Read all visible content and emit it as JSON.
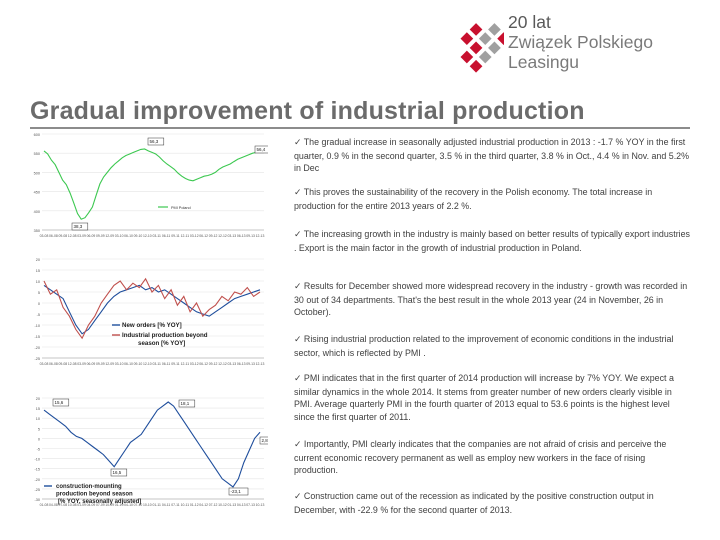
{
  "logo": {
    "line1": "20 lat",
    "line2": "Związek Polskiego",
    "line3": "Leasingu",
    "mark_color": "#c8102e"
  },
  "title": "Gradual improvement of industrial production",
  "bullets": [
    "The gradual increase in seasonally adjusted industrial production in 2013 : -1.7 % YOY in the first quarter, 0.9 % in the second quarter, 3.5 % in the third quarter, 3.8 % in Oct., 4.4 % in Nov. and 5.2% in Dec",
    "This proves the sustainability of the recovery in the Polish economy. The total increase in production for the entire 2013 years of 2.2 %.",
    "The increasing growth in the industry is mainly based on better results of typically export industries . Export is the main factor in the growth of industrial production in Poland.",
    "Results for December showed more widespread recovery in the industry - growth was recorded in 30 out of 34 departments. That's the best result in the whole 2013 year (24 in November, 26 in October).",
    "Rising industrial production related to the improvement of economic conditions in the industrial sector, which is reflected by PMI .",
    "PMI indicates that in the first quarter of 2014 production will increase by 7% YOY. We expect a similar dynamics in the whole 2014. It stems from greater number of new orders clearly visible in PMI. Average quarterly PMI in the fourth quarter of 2013 equal to 53.6 points is the highest level since the first quarter of 2011.",
    "Importantly, PMI clearly indicates that the companies are not afraid of crisis and perceive the current economic recovery permanent as well as employ new workers in the face of rising production.",
    "Construction came out of the recession as indicated by the positive construction output in December, with -22.9 % for the second quarter of 2013."
  ],
  "chart_data": [
    {
      "type": "line",
      "title": "",
      "y_ticks": [
        "600",
        "550",
        "500",
        "450",
        "400",
        "350"
      ],
      "x_ticks": [
        "03-08",
        "06-08",
        "09-08",
        "12-08",
        "03-09",
        "06-09",
        "09-09",
        "12-09",
        "03-10",
        "06-10",
        "09-10",
        "12-10",
        "03-11",
        "06-11",
        "09-11",
        "12-11",
        "03-12",
        "06-12",
        "09-12",
        "12-12",
        "03-13",
        "06-13",
        "09-13",
        "12-13"
      ],
      "ylim": [
        350,
        600
      ],
      "series": [
        {
          "name": "PMI Poland",
          "color": "#3cc850",
          "values": [
            556,
            548,
            532,
            520,
            500,
            480,
            468,
            446,
            420,
            393,
            378,
            382,
            395,
            410,
            440,
            470,
            488,
            500,
            512,
            522,
            530,
            538,
            544,
            548,
            552,
            556,
            560,
            561,
            556,
            552,
            548,
            540,
            530,
            522,
            515,
            508,
            498,
            490,
            484,
            480,
            478,
            482,
            486,
            490,
            492,
            495,
            500,
            508,
            514,
            518,
            522,
            528,
            534,
            538,
            542,
            546,
            550,
            552,
            556
          ]
        }
      ],
      "annotations": [
        "56,3",
        "38,3",
        "56,4"
      ]
    },
    {
      "type": "line",
      "title": "",
      "y_ticks": [
        "20",
        "15",
        "10",
        "5",
        "0",
        "-5",
        "-10",
        "-15",
        "-20",
        "-25"
      ],
      "x_ticks": [
        "03-08",
        "06-08",
        "09-08",
        "12-08",
        "03-09",
        "06-09",
        "09-09",
        "12-09",
        "03-10",
        "06-10",
        "09-10",
        "12-10",
        "03-11",
        "06-11",
        "09-11",
        "12-11",
        "03-12",
        "06-12",
        "09-12",
        "12-12",
        "03-13",
        "06-13",
        "09-13",
        "12-13"
      ],
      "ylim": [
        -25,
        20
      ],
      "series": [
        {
          "name": "New orders [% YOY]",
          "color": "#1f4e9c",
          "values": [
            8,
            6,
            4,
            2,
            -4,
            -10,
            -14,
            -12,
            -8,
            -4,
            0,
            3,
            5,
            6,
            7,
            8,
            6,
            7,
            5,
            6,
            4,
            2,
            0,
            -2,
            -4,
            -5,
            -6,
            -4,
            -2,
            0,
            2,
            3,
            4,
            5,
            6
          ]
        },
        {
          "name": "Industrial production beyond season [% YOY]",
          "color": "#c0504d",
          "values": [
            10,
            4,
            6,
            -2,
            -6,
            -12,
            -16,
            -10,
            -6,
            0,
            4,
            8,
            10,
            6,
            9,
            7,
            11,
            5,
            8,
            2,
            6,
            -1,
            3,
            -4,
            0,
            -6,
            -3,
            -1,
            3,
            1,
            5,
            4,
            7,
            3,
            5
          ]
        }
      ]
    },
    {
      "type": "line",
      "title": "",
      "y_ticks": [
        "20",
        "15",
        "10",
        "5",
        "0",
        "-5",
        "-10",
        "-15",
        "-20",
        "-25",
        "-30"
      ],
      "x_ticks": [
        "01-08",
        "04-08",
        "07-08",
        "10-08",
        "01-09",
        "04-09",
        "07-09",
        "10-09",
        "01-10",
        "04-10",
        "07-10",
        "10-10",
        "01-11",
        "04-11",
        "07-11",
        "10-11",
        "01-12",
        "04-12",
        "07-12",
        "10-12",
        "01-13",
        "04-13",
        "07-13",
        "10-13"
      ],
      "ylim": [
        -30,
        20
      ],
      "series": [
        {
          "name": "construction-mounting production beyond season [% YOY, seasonally adjusted]",
          "color": "#1f4e9c",
          "values": [
            14,
            12,
            10,
            8,
            6,
            3,
            1,
            0,
            -2,
            -4,
            -6,
            -8,
            -11,
            -14,
            -10,
            -6,
            -2,
            0,
            2,
            6,
            10,
            14,
            16,
            18,
            16,
            12,
            8,
            4,
            0,
            -4,
            -8,
            -12,
            -16,
            -20,
            -22,
            -24,
            -20,
            -12,
            -6,
            0,
            3
          ]
        }
      ],
      "annotations": [
        "15,6",
        "18,1",
        "16,5",
        "-23,1",
        "2,8"
      ]
    }
  ]
}
